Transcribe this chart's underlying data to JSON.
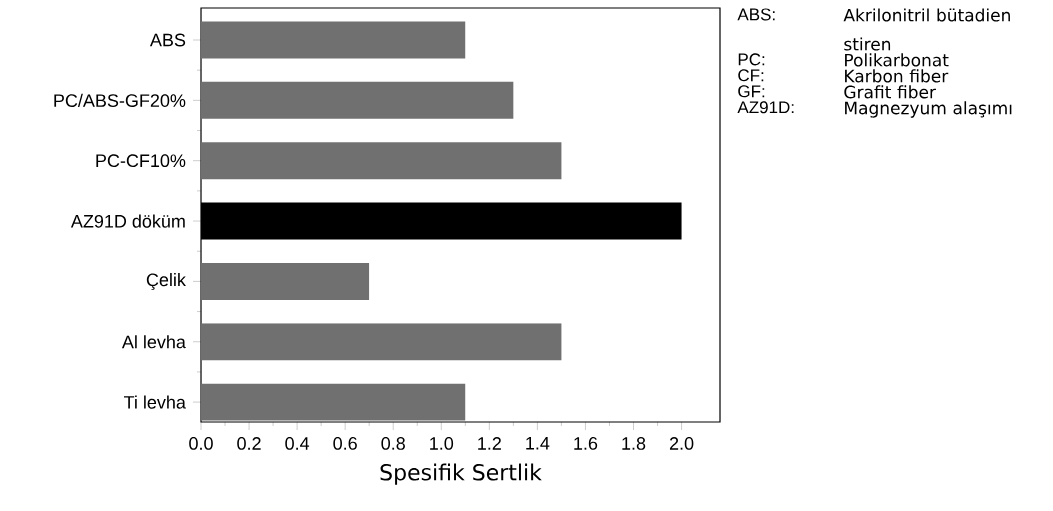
{
  "chart_data": {
    "type": "bar",
    "orientation": "horizontal",
    "xlabel": "Spesifik Sertlik",
    "categories": [
      "ABS",
      "PC/ABS-GF20%",
      "PC-CF10%",
      "AZ91D döküm",
      "Çelik",
      "Al levha",
      "Ti levha"
    ],
    "values": [
      1.1,
      1.3,
      1.5,
      2.0,
      0.7,
      1.5,
      1.1
    ],
    "colors": [
      "#707070",
      "#707070",
      "#707070",
      "#000000",
      "#707070",
      "#707070",
      "#707070"
    ],
    "xlim": [
      0,
      2.16
    ],
    "xticks": [
      {
        "value": 0,
        "label": "0.0"
      },
      {
        "value": 0.2,
        "label": "0.2"
      },
      {
        "value": 0.4,
        "label": "0.4"
      },
      {
        "value": 0.6,
        "label": "0.6"
      },
      {
        "value": 0.8,
        "label": "0.8"
      },
      {
        "value": 1.0,
        "label": "1.0"
      },
      {
        "value": 1.2,
        "label": "1.2"
      },
      {
        "value": 1.4,
        "label": "1.4"
      },
      {
        "value": 1.6,
        "label": "1.6"
      },
      {
        "value": 1.8,
        "label": "1.8"
      },
      {
        "value": 2.0,
        "label": "2.0"
      }
    ],
    "annotations": [
      "ABS:",
      "Akrilonitril bütadien stiren",
      "PC:",
      "Polikarbonat",
      "CF:",
      "Karbon fiber",
      "GF:",
      "Grafit fiber",
      "AZ91D:",
      "Magnezyum alaşımı"
    ]
  }
}
